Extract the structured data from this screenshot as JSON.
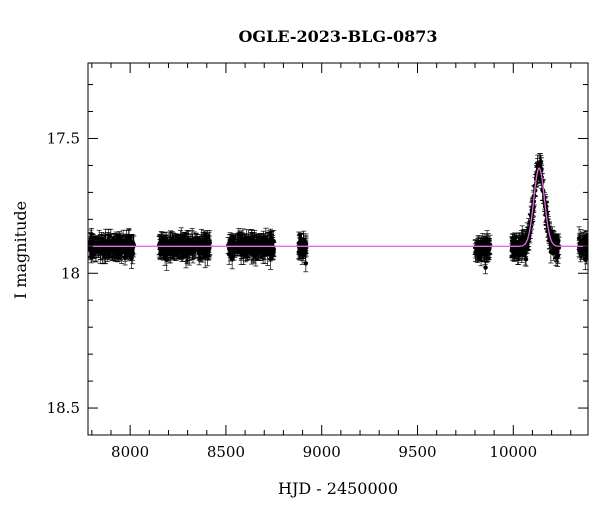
{
  "chart_data": {
    "type": "scatter",
    "title": "OGLE-2023-BLG-0873",
    "xlabel": "HJD - 2450000",
    "ylabel": "I magnitude",
    "xlim": [
      7780,
      10390
    ],
    "ylim": [
      18.6,
      17.22
    ],
    "y_inverted": true,
    "grid": false,
    "legend": "none",
    "x_ticks": [
      8000,
      8500,
      9000,
      9500,
      10000
    ],
    "y_ticks": [
      17.5,
      18,
      18.5
    ],
    "colors": {
      "points": "#000000",
      "model": "#e36be3"
    },
    "series": [
      {
        "kind": "observations",
        "seasons": [
          {
            "x_start": 7790,
            "x_end": 8020,
            "mag": 17.9
          },
          {
            "x_start": 8150,
            "x_end": 8420,
            "mag": 17.9
          },
          {
            "x_start": 8510,
            "x_end": 8750,
            "mag": 17.9
          },
          {
            "x_start": 8880,
            "x_end": 8920,
            "mag": 17.9
          },
          {
            "x_start": 9800,
            "x_end": 9880,
            "mag": 17.91
          },
          {
            "x_start": 9990,
            "x_end": 10240,
            "mag": 17.9
          },
          {
            "x_start": 10340,
            "x_end": 10390,
            "mag": 17.9
          }
        ],
        "typical_error": 0.03
      },
      {
        "kind": "model",
        "baseline": 17.9,
        "peak_time": 10135,
        "peak_mag": 17.61,
        "width": 35
      }
    ]
  }
}
